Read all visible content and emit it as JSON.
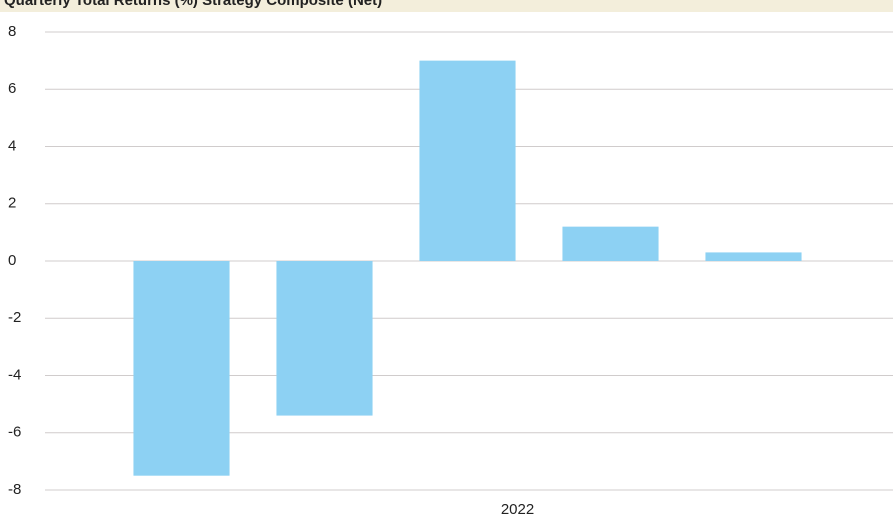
{
  "chart_data": {
    "type": "bar",
    "title": "Quarterly Total Returns (%) Strategy Composite (Net)",
    "categories": [
      null,
      null,
      "2022",
      null,
      null
    ],
    "values": [
      -7.5,
      -5.4,
      7.0,
      1.2,
      0.3
    ],
    "color": "#8dd1f3",
    "ylim": [
      -8,
      8
    ],
    "yticks": [
      -8,
      -6,
      -4,
      -2,
      0,
      2,
      4,
      6,
      8
    ],
    "grid": true
  }
}
